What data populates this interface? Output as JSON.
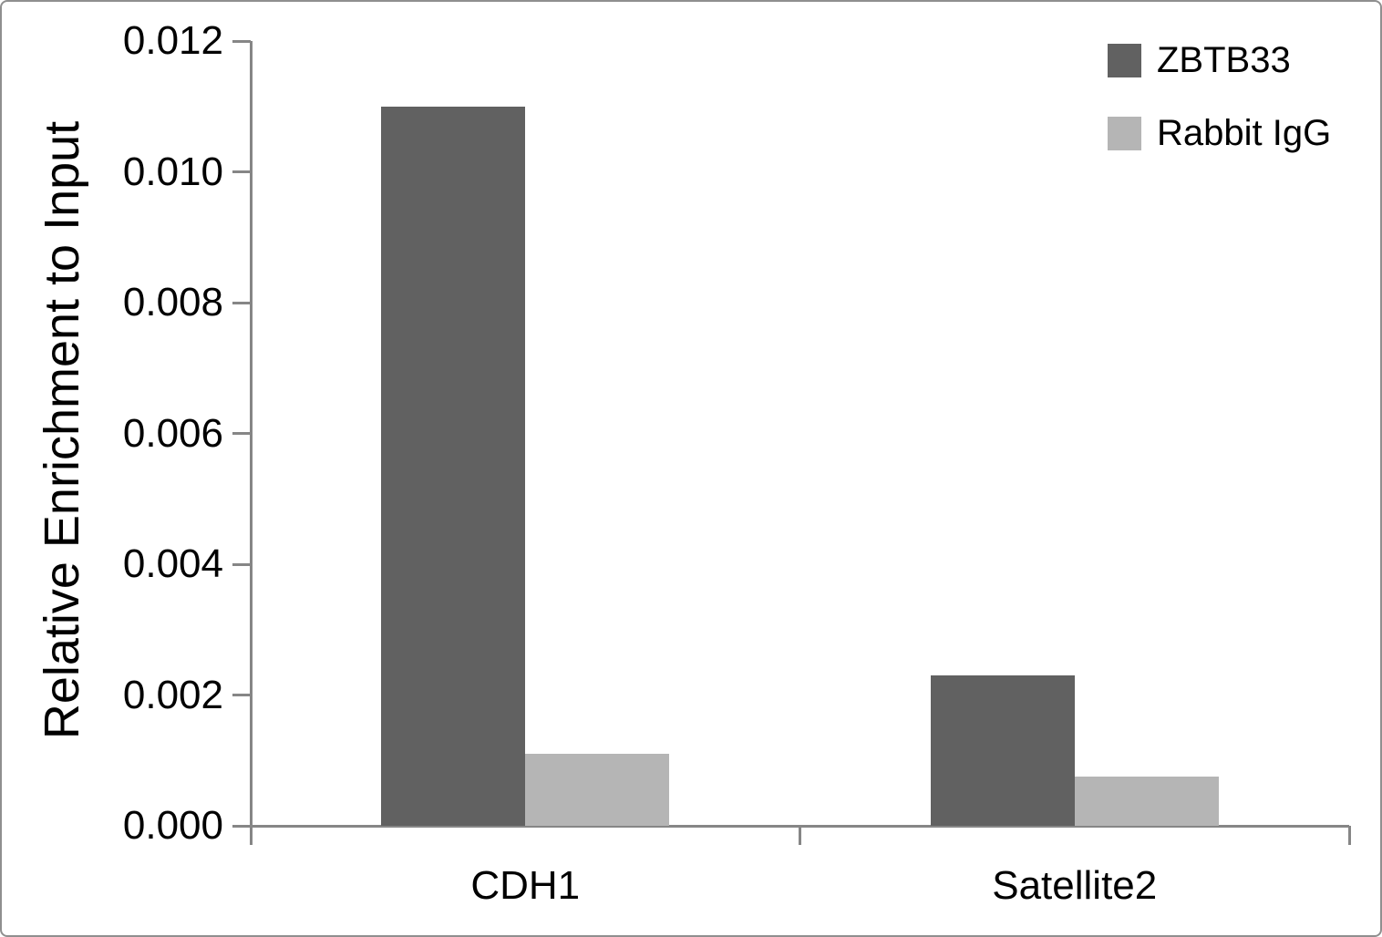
{
  "chart_data": {
    "type": "bar",
    "title": "",
    "xlabel": "",
    "ylabel": "Relative Enrichment to Input",
    "categories": [
      "CDH1",
      "Satellite2"
    ],
    "series": [
      {
        "name": "ZBTB33",
        "color": "#616161",
        "values": [
          0.011,
          0.0023
        ]
      },
      {
        "name": "Rabbit IgG",
        "color": "#b5b5b5",
        "values": [
          0.0011,
          0.00075
        ]
      }
    ],
    "ylim": [
      0,
      0.012
    ],
    "ytick_step": 0.002,
    "ytick_labels": [
      "0.000",
      "0.002",
      "0.004",
      "0.006",
      "0.008",
      "0.010",
      "0.012"
    ],
    "grid": false,
    "legend_position": "top-right",
    "axis_color": "#868686",
    "text_color": "#000000",
    "background_color": "#ffffff"
  }
}
